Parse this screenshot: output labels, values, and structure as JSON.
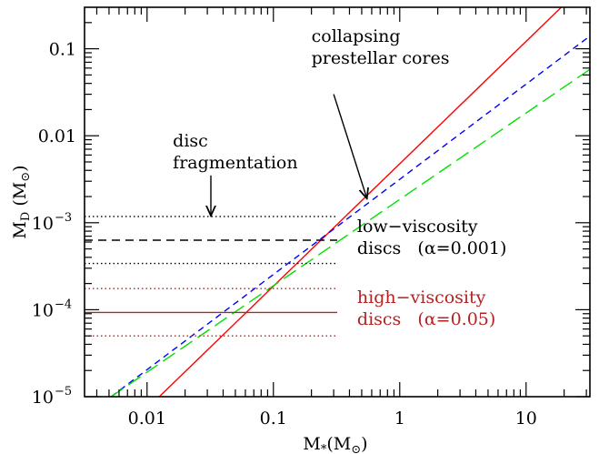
{
  "chart_data": {
    "type": "line",
    "xscale": "log",
    "yscale": "log",
    "xlim": [
      0.0032,
      32
    ],
    "ylim": [
      1e-05,
      0.3
    ],
    "xlabel": {
      "main": "M",
      "sub": "*",
      "rest": "(M",
      "sun": "⊙",
      "close": ")"
    },
    "ylabel": {
      "main": "M",
      "sub": "D",
      "rest": "  (M",
      "sun": "⊙",
      "close": ")"
    },
    "x_ticks": [
      {
        "value": 0.01,
        "label": "0.01"
      },
      {
        "value": 0.1,
        "label": "0.1"
      },
      {
        "value": 1,
        "label": "1"
      },
      {
        "value": 10,
        "label": "10"
      }
    ],
    "y_ticks": [
      {
        "value": 1e-05,
        "label": "10",
        "exp": "−5"
      },
      {
        "value": 0.0001,
        "label": "10",
        "exp": "−4"
      },
      {
        "value": 0.001,
        "label": "10",
        "exp": "−3"
      },
      {
        "value": 0.01,
        "label": "0.01",
        "exp": ""
      },
      {
        "value": 0.1,
        "label": "0.1",
        "exp": ""
      }
    ],
    "grid": false,
    "series": [
      {
        "color": "#ff0000",
        "style": "solid",
        "points": [
          [
            0.0125,
            1e-05
          ],
          [
            19,
            0.3
          ]
        ]
      },
      {
        "color": "#0000ff",
        "style": "short-dash",
        "points": [
          [
            0.0052,
            1e-05
          ],
          [
            32,
            0.14
          ]
        ]
      },
      {
        "color": "#00e000",
        "style": "long-dash",
        "points": [
          [
            0.0052,
            1e-05
          ],
          [
            32,
            0.058
          ]
        ]
      },
      {
        "color": "#000000",
        "style": "dotted",
        "points": [
          [
            0.0032,
            0.00118
          ],
          [
            0.32,
            0.00118
          ]
        ]
      },
      {
        "color": "#000000",
        "style": "dashed",
        "points": [
          [
            0.0032,
            0.00063
          ],
          [
            0.32,
            0.00063
          ]
        ]
      },
      {
        "color": "#000000",
        "style": "dotted",
        "points": [
          [
            0.0032,
            0.00034
          ],
          [
            0.32,
            0.00034
          ]
        ]
      },
      {
        "color": "#b22222",
        "style": "dotted",
        "points": [
          [
            0.0032,
            0.000175
          ],
          [
            0.32,
            0.000175
          ]
        ]
      },
      {
        "color": "#a52a2a",
        "style": "solid",
        "points": [
          [
            0.0032,
            9.3e-05
          ],
          [
            0.32,
            9.3e-05
          ]
        ]
      },
      {
        "color": "#b22222",
        "style": "dotted",
        "points": [
          [
            0.0032,
            5e-05
          ],
          [
            0.32,
            5e-05
          ]
        ]
      }
    ],
    "annotations": [
      {
        "lines": [
          "collapsing",
          "prestellar cores"
        ],
        "color": "#000000",
        "x": 0.2,
        "y": 0.12,
        "arrow_from": [
          0.3,
          0.03
        ],
        "arrow_to": [
          0.55,
          0.0019
        ]
      },
      {
        "lines": [
          "disc",
          "fragmentation"
        ],
        "color": "#000000",
        "x": 0.016,
        "y": 0.0075,
        "arrow_from": [
          0.032,
          0.0035
        ],
        "arrow_to": [
          0.032,
          0.0012
        ]
      },
      {
        "lines": [
          "low−viscosity",
          "discs   (α=0.001)"
        ],
        "color": "#000000",
        "x": 0.46,
        "y": 0.00078
      },
      {
        "lines": [
          "high−viscosity",
          "discs   (α=0.05)"
        ],
        "color": "#b22222",
        "x": 0.46,
        "y": 0.00012
      }
    ]
  }
}
